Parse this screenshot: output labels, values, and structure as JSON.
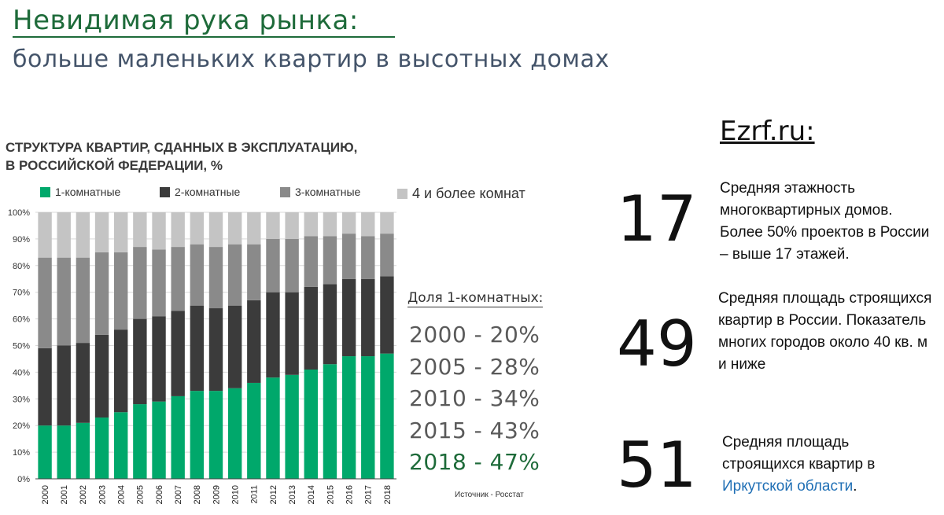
{
  "header": {
    "title": "Невидимая рука рынка:",
    "subtitle": "больше маленьких квартир в высотных домах"
  },
  "chart_data": {
    "type": "bar",
    "stacked": true,
    "title_line1": "СТРУКТУРА КВАРТИР, СДАННЫХ В ЭКСПЛУАТАЦИЮ,",
    "title_line2": "В РОССИЙСКОЙ ФЕДЕРАЦИИ, %",
    "categories": [
      "2000",
      "2001",
      "2002",
      "2003",
      "2004",
      "2005",
      "2006",
      "2007",
      "2008",
      "2009",
      "2010",
      "2011",
      "2012",
      "2013",
      "2014",
      "2015",
      "2016",
      "2017",
      "2018"
    ],
    "series": [
      {
        "name": "1-комнатные",
        "color": "#00a86b",
        "values": [
          20,
          20,
          21,
          23,
          25,
          28,
          29,
          31,
          33,
          33,
          34,
          36,
          38,
          39,
          41,
          43,
          46,
          46,
          47
        ]
      },
      {
        "name": "2-комнатные",
        "color": "#3b3b3b",
        "values": [
          29,
          30,
          30,
          31,
          31,
          32,
          32,
          32,
          32,
          31,
          31,
          31,
          32,
          31,
          31,
          30,
          29,
          29,
          29
        ]
      },
      {
        "name": "3-комнатные",
        "color": "#8a8a8a",
        "values": [
          34,
          33,
          32,
          31,
          29,
          27,
          25,
          24,
          23,
          23,
          23,
          21,
          20,
          20,
          19,
          18,
          17,
          16,
          16
        ]
      },
      {
        "name": "4 и более комнат",
        "color": "#c4c4c4",
        "values": [
          17,
          17,
          17,
          15,
          15,
          13,
          14,
          13,
          12,
          13,
          12,
          12,
          10,
          10,
          9,
          9,
          8,
          9,
          8
        ]
      }
    ],
    "ylim": [
      0,
      100
    ],
    "yticks": [
      "0%",
      "10%",
      "20%",
      "30%",
      "40%",
      "50%",
      "60%",
      "70%",
      "80%",
      "90%",
      "100%"
    ],
    "grid": true,
    "legend_position": "top",
    "source": "Источник - Росстат"
  },
  "share": {
    "heading": "Доля 1-комнатных:",
    "items": [
      {
        "label": "2000 - 20%"
      },
      {
        "label": "2005 - 28%"
      },
      {
        "label": "2010 - 34%"
      },
      {
        "label": "2015 - 43%"
      },
      {
        "label": "2018 - 47%"
      }
    ],
    "highlight_color": "#1e6b3a"
  },
  "site": "Ezrf.ru:",
  "stats": [
    {
      "number": "17",
      "text": "Средняя этажность многоквартирных домов. Более 50% проектов в России – выше 17 этажей."
    },
    {
      "number": "49",
      "text": "Средняя площадь строящихся квартир в России. Показатель многих городов около 40 кв. м и ниже"
    },
    {
      "number": "51",
      "text_before": "Средняя площадь строящихся квартир в ",
      "link": "Иркутской области",
      "text_after": "."
    }
  ]
}
